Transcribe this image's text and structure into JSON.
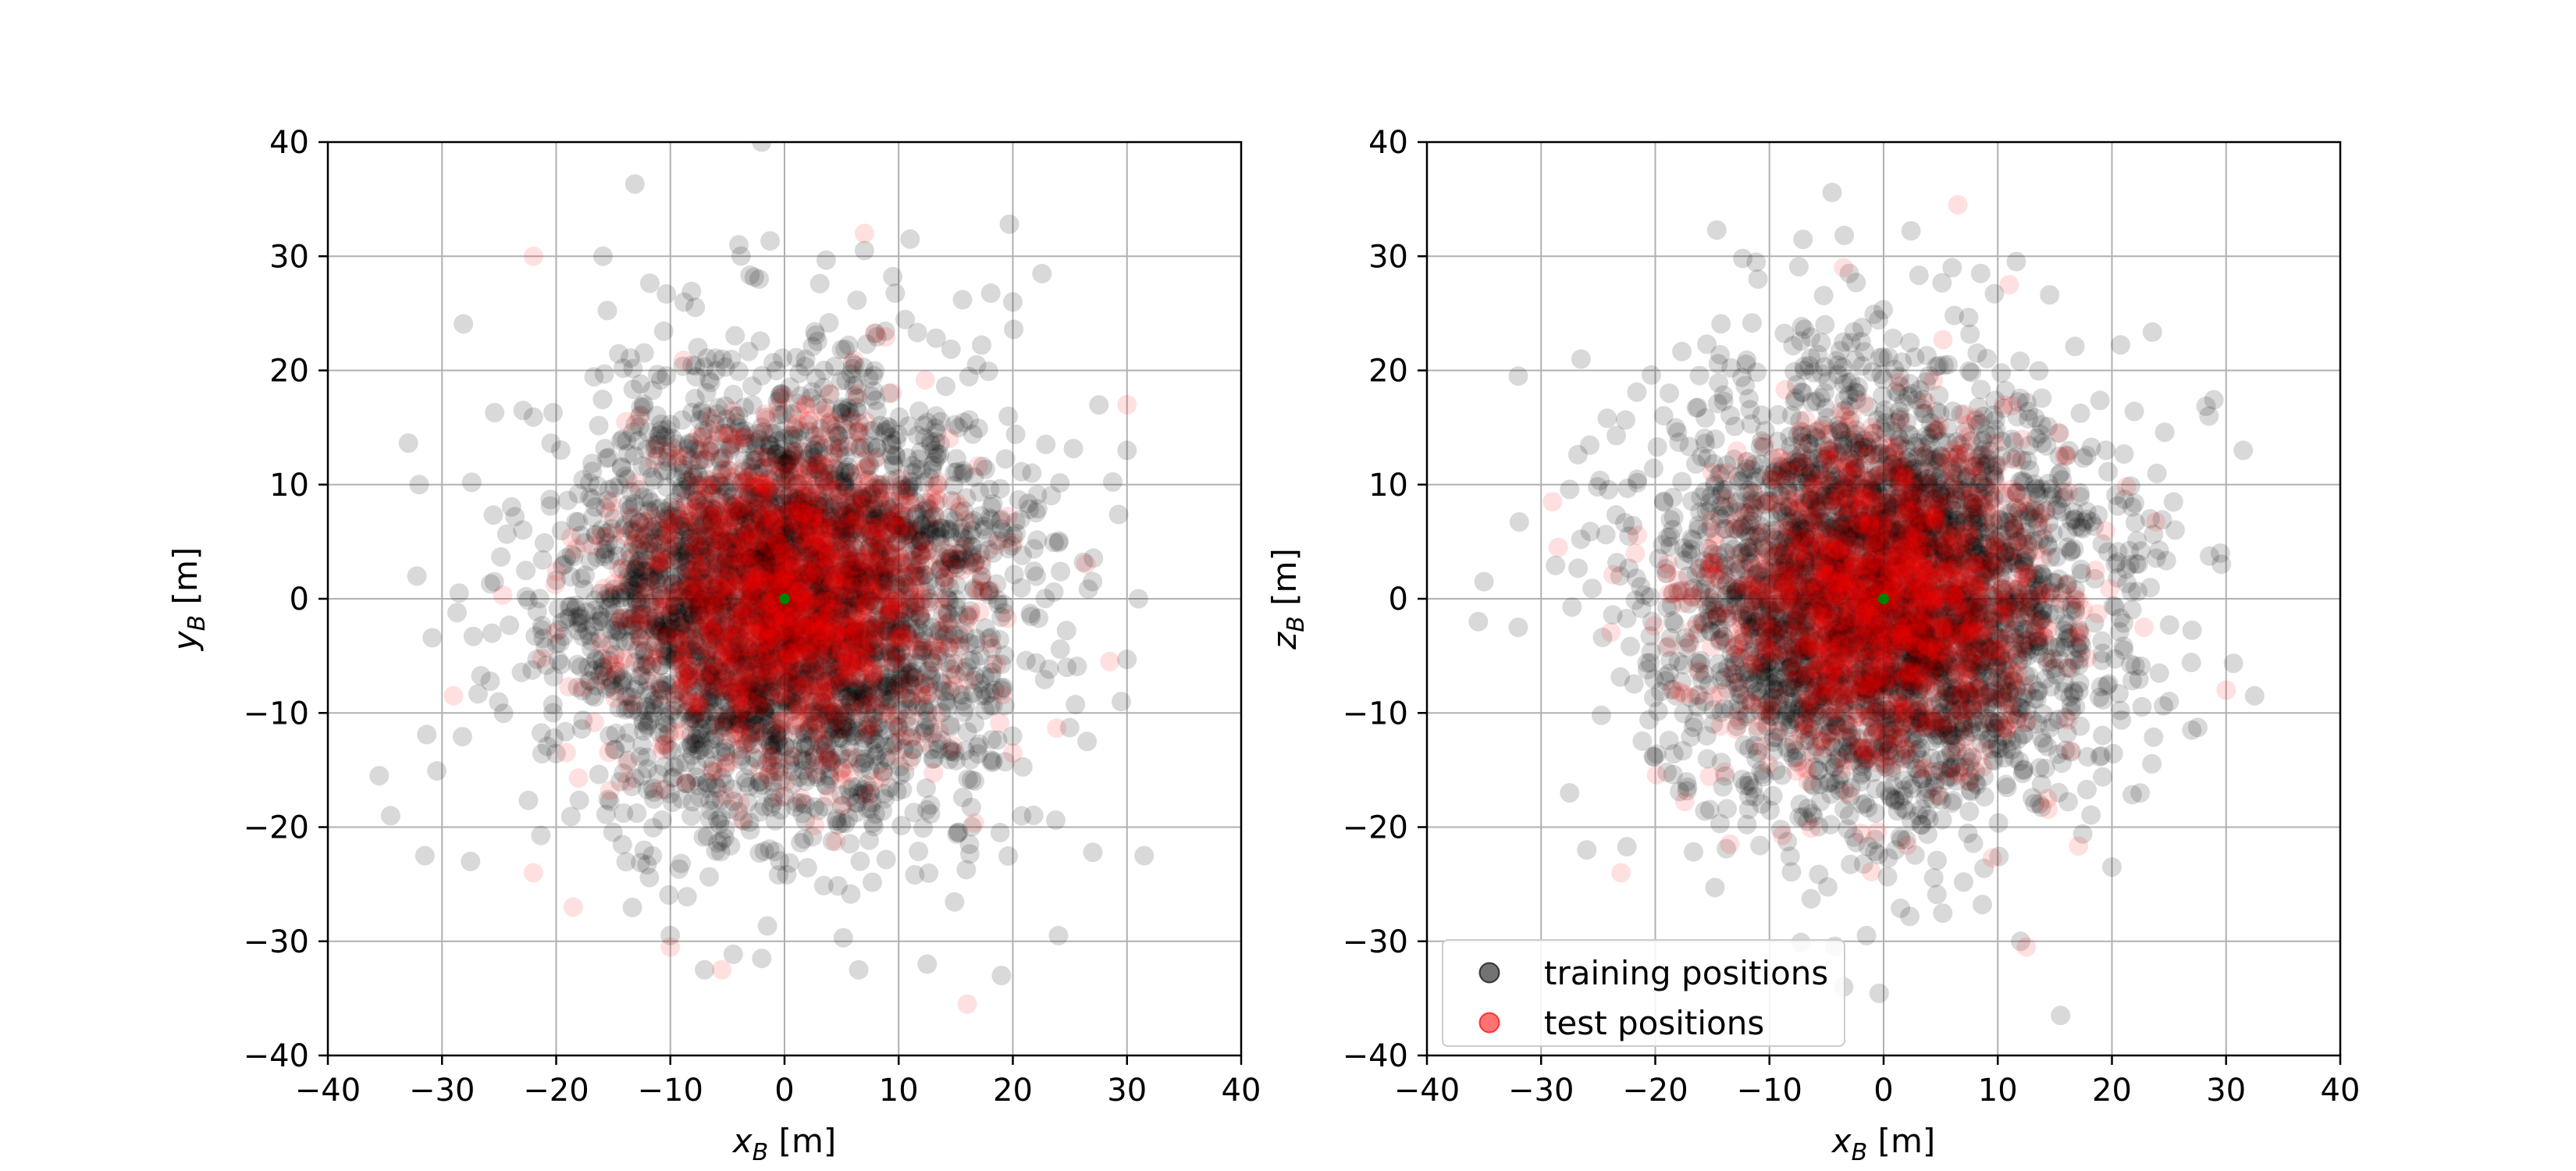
{
  "figure": {
    "title": "",
    "colors": {
      "training": "#000000",
      "test": "#ff0000",
      "origin": "#008000",
      "grid": "#b0b0b0",
      "axes": "#000000",
      "background": "#ffffff"
    }
  },
  "chart_data": [
    {
      "type": "scatter",
      "title": "",
      "xlabel": {
        "base": "x",
        "sub": "B",
        "unit": " [m]"
      },
      "ylabel": {
        "base": "y",
        "sub": "B",
        "unit": " [m]"
      },
      "xlim": [
        -40,
        40
      ],
      "ylim": [
        -40,
        40
      ],
      "xticks": [
        -40,
        -30,
        -20,
        -10,
        0,
        10,
        20,
        30,
        40
      ],
      "yticks": [
        -40,
        -30,
        -20,
        -10,
        0,
        10,
        20,
        30,
        40
      ],
      "grid": true,
      "legend": false,
      "origin_marker": {
        "x": 0,
        "y": 0,
        "color": "#008000"
      },
      "series": [
        {
          "name": "training positions",
          "color": "#000000",
          "alpha": 0.15,
          "distribution": "isotropic gaussian",
          "center": [
            0,
            0
          ],
          "std": 9.5,
          "count": 3600,
          "seed": 11,
          "highlighted_points": [
            [
              -2,
              40
            ],
            [
              -35.5,
              -15.5
            ],
            [
              -34.5,
              -19
            ],
            [
              -31.5,
              -22.5
            ],
            [
              -27.5,
              -23
            ],
            [
              31.5,
              -22.5
            ],
            [
              31,
              0
            ],
            [
              29.5,
              -9
            ],
            [
              30,
              13
            ],
            [
              24,
              -29.5
            ],
            [
              19,
              -33
            ],
            [
              12.5,
              -32
            ],
            [
              6.5,
              -32.5
            ],
            [
              -7,
              -32.5
            ],
            [
              -2,
              -31.5
            ],
            [
              11,
              31.5
            ],
            [
              -4,
              31
            ],
            [
              7,
              30.5
            ],
            [
              -32,
              10
            ],
            [
              -28.5,
              0.5
            ],
            [
              26.5,
              -12.5
            ],
            [
              20,
              26
            ]
          ]
        },
        {
          "name": "test positions",
          "color": "#ff0000",
          "alpha": 0.12,
          "distribution": "isotropic gaussian",
          "center": [
            0,
            0
          ],
          "std": 7.0,
          "count": 1400,
          "seed": 23,
          "highlighted_points": [
            [
              -22,
              30
            ],
            [
              7,
              32
            ],
            [
              16,
              -35.5
            ],
            [
              -10,
              -30.5
            ],
            [
              -5.5,
              -32.5
            ],
            [
              30,
              17
            ],
            [
              28.5,
              -5.5
            ],
            [
              -29,
              -8.5
            ],
            [
              -22,
              -24
            ],
            [
              -18.5,
              -27
            ]
          ]
        }
      ]
    },
    {
      "type": "scatter",
      "title": "",
      "xlabel": {
        "base": "x",
        "sub": "B",
        "unit": " [m]"
      },
      "ylabel": {
        "base": "z",
        "sub": "B",
        "unit": " [m]"
      },
      "xlim": [
        -40,
        40
      ],
      "ylim": [
        -40,
        40
      ],
      "xticks": [
        -40,
        -30,
        -20,
        -10,
        0,
        10,
        20,
        30,
        40
      ],
      "yticks": [
        -40,
        -30,
        -20,
        -10,
        0,
        10,
        20,
        30,
        40
      ],
      "grid": true,
      "legend": true,
      "legend_loc": "lower-left",
      "origin_marker": {
        "x": 0,
        "y": 0,
        "color": "#008000"
      },
      "series": [
        {
          "name": "training positions",
          "color": "#000000",
          "alpha": 0.15,
          "distribution": "isotropic gaussian",
          "center": [
            0,
            0
          ],
          "std": 9.5,
          "count": 3600,
          "seed": 37,
          "highlighted_points": [
            [
              -35.5,
              -2
            ],
            [
              -35,
              1.5
            ],
            [
              -32,
              -2.5
            ],
            [
              -32,
              19.5
            ],
            [
              -26.5,
              21
            ],
            [
              31.5,
              13
            ],
            [
              32.5,
              -8.5
            ],
            [
              29.5,
              4
            ],
            [
              15.5,
              -36.5
            ],
            [
              -3.5,
              -34
            ],
            [
              -26,
              -22
            ],
            [
              -27.5,
              -17
            ],
            [
              6,
              29
            ],
            [
              -3,
              28.5
            ],
            [
              8.5,
              28.5
            ],
            [
              -11,
              28
            ],
            [
              12,
              -30
            ],
            [
              -1.5,
              -29.5
            ],
            [
              20,
              -23.5
            ],
            [
              27,
              -11.5
            ],
            [
              28.5,
              16
            ]
          ]
        },
        {
          "name": "test positions",
          "color": "#ff0000",
          "alpha": 0.12,
          "distribution": "isotropic gaussian",
          "center": [
            0,
            0
          ],
          "std": 7.0,
          "count": 1400,
          "seed": 53,
          "highlighted_points": [
            [
              6.5,
              34.5
            ],
            [
              -3.5,
              29
            ],
            [
              11,
              27.5
            ],
            [
              12.5,
              -30.5
            ],
            [
              -29,
              8.5
            ],
            [
              -28.5,
              4.5
            ],
            [
              30,
              -8
            ],
            [
              17,
              -2.5
            ],
            [
              -23,
              -24
            ]
          ]
        }
      ]
    }
  ],
  "legend": {
    "entries": [
      {
        "label": "training positions",
        "color": "#000000",
        "alpha": 0.55
      },
      {
        "label": "test positions",
        "color": "#ff0000",
        "alpha": 0.55
      }
    ]
  }
}
